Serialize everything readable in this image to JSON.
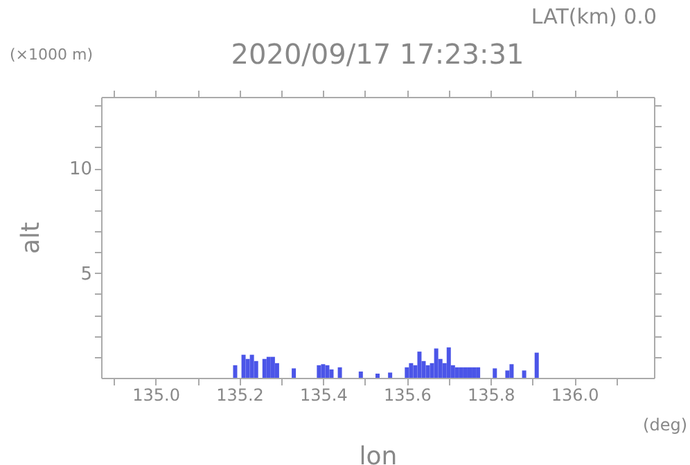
{
  "chart_data": {
    "type": "bar",
    "title": "2020/09/17 17:23:31",
    "xlabel": "lon",
    "ylabel": "alt",
    "annotations": [
      "LAT(km) 0.0",
      "(×1000 m)",
      "(deg)"
    ],
    "x": [
      135.19,
      135.21,
      135.22,
      135.23,
      135.24,
      135.26,
      135.27,
      135.28,
      135.29,
      135.33,
      135.39,
      135.4,
      135.41,
      135.42,
      135.44,
      135.49,
      135.53,
      135.56,
      135.6,
      135.61,
      135.62,
      135.63,
      135.64,
      135.65,
      135.66,
      135.67,
      135.68,
      135.69,
      135.7,
      135.71,
      135.72,
      135.73,
      135.74,
      135.75,
      135.76,
      135.77,
      135.81,
      135.84,
      135.85,
      135.88,
      135.91
    ],
    "values": [
      0.6,
      1.1,
      0.9,
      1.1,
      0.8,
      0.9,
      1.0,
      1.0,
      0.7,
      0.45,
      0.6,
      0.65,
      0.6,
      0.4,
      0.5,
      0.3,
      0.2,
      0.25,
      0.5,
      0.7,
      0.6,
      1.25,
      0.8,
      0.6,
      0.7,
      1.4,
      0.9,
      0.7,
      1.45,
      0.6,
      0.5,
      0.5,
      0.5,
      0.5,
      0.5,
      0.5,
      0.45,
      0.35,
      0.65,
      0.35,
      1.2
    ],
    "color": "#4b55e8",
    "xlim": [
      134.87,
      136.19
    ],
    "ylim": [
      0,
      13.4
    ],
    "xticks": [
      {
        "value": 134.9,
        "label": null
      },
      {
        "value": 135.0,
        "label": "135.0"
      },
      {
        "value": 135.1,
        "label": null
      },
      {
        "value": 135.2,
        "label": "135.2"
      },
      {
        "value": 135.3,
        "label": null
      },
      {
        "value": 135.4,
        "label": "135.4"
      },
      {
        "value": 135.5,
        "label": null
      },
      {
        "value": 135.6,
        "label": "135.6"
      },
      {
        "value": 135.7,
        "label": null
      },
      {
        "value": 135.8,
        "label": "135.8"
      },
      {
        "value": 135.9,
        "label": null
      },
      {
        "value": 136.0,
        "label": "136.0"
      },
      {
        "value": 136.1,
        "label": null
      }
    ],
    "yticks": [
      {
        "value": 1,
        "label": null
      },
      {
        "value": 2,
        "label": null
      },
      {
        "value": 3,
        "label": null
      },
      {
        "value": 4,
        "label": null
      },
      5,
      {
        "value": 6,
        "label": null
      },
      {
        "value": 7,
        "label": null
      },
      {
        "value": 8,
        "label": null
      },
      {
        "value": 9,
        "label": null
      },
      10,
      {
        "value": 11,
        "label": null
      },
      {
        "value": 12,
        "label": null
      },
      {
        "value": 13,
        "label": null
      }
    ],
    "grid": false
  }
}
